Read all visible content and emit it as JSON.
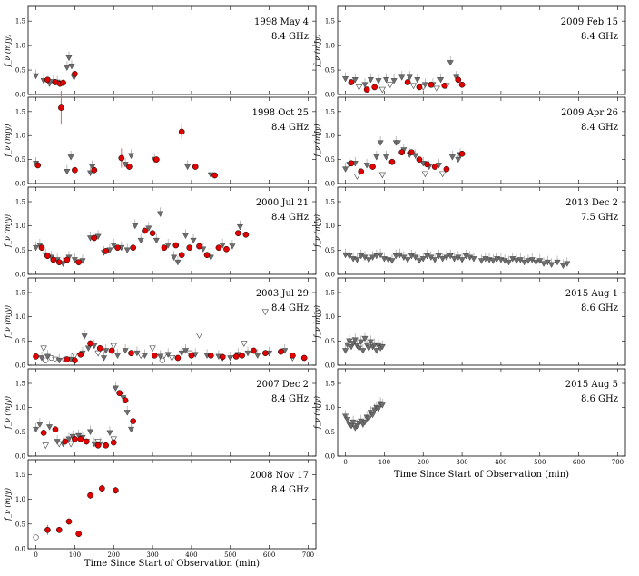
{
  "figure": {
    "xlabel": "Time Since Start of Observation (min)",
    "ylabel": "f_ν (mJy)",
    "yticks": [
      "0.0",
      "0.5",
      "1.0",
      "1.5"
    ],
    "xticks": [
      "0",
      "100",
      "200",
      "300",
      "400",
      "500",
      "600",
      "700"
    ]
  },
  "chart_data": [
    {
      "type": "scatter",
      "column": "left",
      "row": 0,
      "title": "1998 May 4",
      "freq": "8.4 GHz",
      "xlim": [
        -20,
        720
      ],
      "ylim": [
        0,
        1.8
      ],
      "series": [
        {
          "name": "detection-red",
          "x": [
            30,
            50,
            62,
            70,
            100
          ],
          "y": [
            0.3,
            0.25,
            0.22,
            0.24,
            0.42
          ]
        },
        {
          "name": "grey-filled-triangle",
          "x": [
            0,
            20,
            35,
            45,
            55,
            80,
            85,
            92,
            98
          ],
          "y": [
            0.38,
            0.28,
            0.22,
            0.26,
            0.25,
            0.55,
            0.75,
            0.58,
            0.35
          ]
        }
      ]
    },
    {
      "type": "scatter",
      "column": "left",
      "row": 1,
      "title": "1998 Oct 25",
      "freq": "8.4 GHz",
      "xlim": [
        -20,
        720
      ],
      "ylim": [
        0,
        1.8
      ],
      "series": [
        {
          "name": "detection-red",
          "x": [
            5,
            65,
            100,
            150,
            220,
            240,
            310,
            375,
            410,
            460
          ],
          "y": [
            0.38,
            1.58,
            0.28,
            0.28,
            0.53,
            0.35,
            0.5,
            1.08,
            0.35,
            0.17
          ],
          "err": [
            0.05,
            0.35,
            0.03,
            0.04,
            0.2,
            0.03,
            0.04,
            0.14,
            0.04,
            0.03
          ]
        },
        {
          "name": "grey-filled-triangle",
          "x": [
            0,
            80,
            90,
            140,
            145,
            230,
            245,
            305,
            390,
            450
          ],
          "y": [
            0.42,
            0.25,
            0.55,
            0.22,
            0.35,
            0.4,
            0.58,
            0.5,
            0.35,
            0.18
          ]
        }
      ]
    },
    {
      "type": "scatter",
      "column": "left",
      "row": 2,
      "title": "2000 Jul 21",
      "freq": "8.4 GHz",
      "xlim": [
        -20,
        720
      ],
      "ylim": [
        0,
        1.8
      ],
      "series": [
        {
          "name": "detection-red",
          "x": [
            15,
            30,
            45,
            60,
            80,
            110,
            150,
            180,
            210,
            250,
            280,
            300,
            330,
            360,
            375,
            395,
            420,
            440,
            470,
            490,
            520,
            540
          ],
          "y": [
            0.55,
            0.38,
            0.3,
            0.25,
            0.3,
            0.25,
            0.75,
            0.48,
            0.55,
            0.55,
            0.9,
            0.85,
            0.55,
            0.6,
            0.4,
            0.55,
            0.58,
            0.4,
            0.55,
            0.52,
            0.85,
            0.82
          ]
        },
        {
          "name": "grey-filled-triangle",
          "x": [
            0,
            10,
            25,
            40,
            55,
            70,
            85,
            100,
            120,
            140,
            160,
            175,
            190,
            200,
            220,
            235,
            255,
            270,
            290,
            310,
            320,
            340,
            355,
            365,
            385,
            405,
            430,
            450,
            480,
            505,
            525
          ],
          "y": [
            0.55,
            0.6,
            0.4,
            0.35,
            0.3,
            0.22,
            0.35,
            0.3,
            0.28,
            0.75,
            0.78,
            0.45,
            0.5,
            0.6,
            0.55,
            0.5,
            1.0,
            0.7,
            0.95,
            0.7,
            1.25,
            0.6,
            0.35,
            0.25,
            0.8,
            0.7,
            0.52,
            0.35,
            0.6,
            0.58,
            0.98
          ]
        }
      ]
    },
    {
      "type": "scatter",
      "column": "left",
      "row": 3,
      "title": "2003 Jul 29",
      "freq": "8.4 GHz",
      "xlim": [
        -20,
        720
      ],
      "ylim": [
        0,
        1.8
      ],
      "series": [
        {
          "name": "detection-red",
          "x": [
            0,
            80,
            100,
            115,
            140,
            165,
            195,
            245,
            305,
            365,
            400,
            450,
            480,
            515,
            530,
            560,
            590,
            630,
            660,
            690
          ],
          "y": [
            0.18,
            0.12,
            0.1,
            0.22,
            0.45,
            0.35,
            0.3,
            0.25,
            0.2,
            0.15,
            0.2,
            0.2,
            0.17,
            0.18,
            0.2,
            0.3,
            0.25,
            0.28,
            0.2,
            0.15
          ]
        },
        {
          "name": "grey-filled-triangle",
          "x": [
            15,
            30,
            60,
            90,
            120,
            125,
            135,
            150,
            175,
            180,
            210,
            230,
            260,
            280,
            320,
            340,
            375,
            385,
            410,
            440,
            470,
            500,
            520,
            545,
            570,
            600,
            640
          ],
          "y": [
            0.15,
            0.18,
            0.1,
            0.12,
            0.25,
            0.6,
            0.35,
            0.4,
            0.15,
            0.3,
            0.2,
            0.3,
            0.25,
            0.2,
            0.18,
            0.22,
            0.25,
            0.3,
            0.22,
            0.2,
            0.18,
            0.15,
            0.22,
            0.25,
            0.2,
            0.25,
            0.3
          ]
        },
        {
          "name": "open-triangle",
          "x": [
            20,
            50,
            100,
            160,
            200,
            270,
            300,
            330,
            350,
            395,
            420,
            480,
            535,
            590,
            660
          ],
          "y": [
            0.35,
            0.12,
            0.2,
            0.25,
            0.4,
            0.2,
            0.35,
            0.2,
            0.15,
            0.25,
            0.62,
            0.15,
            0.45,
            1.1,
            0.15
          ]
        },
        {
          "name": "open-circle",
          "x": [
            25,
            40,
            75,
            325
          ],
          "y": [
            0.1,
            0.15,
            0.12,
            0.1
          ]
        }
      ]
    },
    {
      "type": "scatter",
      "column": "left",
      "row": 4,
      "title": "2007 Dec 2",
      "freq": "8.4 GHz",
      "xlim": [
        -20,
        720
      ],
      "ylim": [
        0,
        1.8
      ],
      "series": [
        {
          "name": "detection-red",
          "x": [
            20,
            50,
            75,
            100,
            115,
            130,
            160,
            180,
            200,
            215,
            230,
            250
          ],
          "y": [
            0.48,
            0.55,
            0.3,
            0.35,
            0.35,
            0.3,
            0.22,
            0.22,
            0.28,
            1.3,
            1.15,
            0.72
          ]
        },
        {
          "name": "grey-filled-triangle",
          "x": [
            0,
            10,
            35,
            55,
            70,
            85,
            95,
            110,
            120,
            140,
            150,
            165,
            190,
            205,
            225,
            235,
            245
          ],
          "y": [
            0.55,
            0.65,
            0.6,
            0.3,
            0.25,
            0.35,
            0.4,
            0.42,
            0.38,
            0.5,
            0.25,
            0.25,
            0.48,
            1.4,
            1.2,
            0.9,
            0.55
          ]
        },
        {
          "name": "open-triangle",
          "x": [
            25,
            60,
            90,
            130,
            160,
            200
          ],
          "y": [
            0.22,
            0.25,
            0.25,
            0.3,
            0.3,
            0.35
          ]
        }
      ]
    },
    {
      "type": "scatter",
      "column": "left",
      "row": 5,
      "title": "2008 Nov 17",
      "freq": "8.4 GHz",
      "xlim": [
        -20,
        720
      ],
      "ylim": [
        0,
        1.8
      ],
      "series": [
        {
          "name": "detection-red",
          "x": [
            30,
            60,
            85,
            110,
            140,
            170,
            205
          ],
          "y": [
            0.38,
            0.38,
            0.55,
            0.3,
            1.08,
            1.22,
            1.18
          ],
          "err": [
            0.1,
            0.06,
            0.06,
            0.05,
            0.07,
            0.07,
            0.07
          ]
        },
        {
          "name": "open-circle",
          "x": [
            0
          ],
          "y": [
            0.23
          ]
        }
      ]
    },
    {
      "type": "scatter",
      "column": "right",
      "row": 0,
      "title": "2009 Feb 15",
      "freq": "8.4 GHz",
      "xlim": [
        -20,
        720
      ],
      "ylim": [
        0,
        1.8
      ],
      "series": [
        {
          "name": "detection-red",
          "x": [
            15,
            55,
            75,
            160,
            190,
            220,
            255,
            290,
            300
          ],
          "y": [
            0.25,
            0.1,
            0.15,
            0.25,
            0.15,
            0.2,
            0.18,
            0.3,
            0.2
          ]
        },
        {
          "name": "grey-filled-triangle",
          "x": [
            0,
            25,
            50,
            65,
            85,
            105,
            125,
            145,
            165,
            185,
            205,
            225,
            245,
            270,
            285
          ],
          "y": [
            0.32,
            0.3,
            0.2,
            0.3,
            0.28,
            0.3,
            0.28,
            0.35,
            0.35,
            0.3,
            0.2,
            0.2,
            0.3,
            0.65,
            0.35
          ]
        },
        {
          "name": "open-triangle",
          "x": [
            35,
            95,
            115,
            175,
            200,
            235,
            260
          ],
          "y": [
            0.15,
            0.1,
            0.2,
            0.18,
            0.15,
            0.12,
            0.18
          ]
        }
      ]
    },
    {
      "type": "scatter",
      "column": "right",
      "row": 1,
      "title": "2009 Apr 26",
      "freq": "8.4 GHz",
      "xlim": [
        -20,
        720
      ],
      "ylim": [
        0,
        1.8
      ],
      "series": [
        {
          "name": "detection-red",
          "x": [
            15,
            40,
            70,
            120,
            145,
            170,
            190,
            210,
            230,
            260,
            300
          ],
          "y": [
            0.42,
            0.25,
            0.35,
            0.45,
            0.65,
            0.65,
            0.5,
            0.4,
            0.35,
            0.3,
            0.62
          ]
        },
        {
          "name": "grey-filled-triangle",
          "x": [
            0,
            10,
            25,
            55,
            80,
            90,
            105,
            130,
            135,
            150,
            165,
            180,
            200,
            215,
            240,
            275,
            290,
            295
          ],
          "y": [
            0.3,
            0.4,
            0.42,
            0.38,
            0.55,
            0.85,
            0.55,
            0.85,
            0.85,
            0.7,
            0.6,
            0.58,
            0.42,
            0.35,
            0.38,
            0.55,
            0.5,
            0.6
          ]
        },
        {
          "name": "open-triangle",
          "x": [
            30,
            95,
            205,
            250
          ],
          "y": [
            0.15,
            0.18,
            0.2,
            0.2
          ]
        }
      ]
    },
    {
      "type": "scatter",
      "column": "right",
      "row": 2,
      "title": "2013 Dec 2",
      "freq": "7.5 GHz",
      "xlim": [
        -20,
        720
      ],
      "ylim": [
        0,
        1.8
      ],
      "series": [
        {
          "name": "grey-filled-triangle",
          "x": [
            0,
            10,
            20,
            30,
            40,
            50,
            60,
            70,
            80,
            90,
            100,
            110,
            120,
            130,
            140,
            150,
            160,
            170,
            180,
            190,
            200,
            210,
            220,
            230,
            240,
            250,
            260,
            270,
            280,
            290,
            300,
            310,
            320,
            330,
            350,
            360,
            370,
            380,
            390,
            400,
            410,
            420,
            430,
            440,
            450,
            460,
            470,
            480,
            490,
            500,
            510,
            520,
            530,
            545,
            560,
            570
          ],
          "y": [
            0.4,
            0.38,
            0.32,
            0.3,
            0.38,
            0.35,
            0.3,
            0.35,
            0.38,
            0.4,
            0.32,
            0.3,
            0.28,
            0.38,
            0.4,
            0.35,
            0.3,
            0.38,
            0.35,
            0.28,
            0.32,
            0.38,
            0.35,
            0.3,
            0.38,
            0.32,
            0.35,
            0.38,
            0.32,
            0.35,
            0.3,
            0.38,
            0.35,
            0.32,
            0.28,
            0.32,
            0.3,
            0.28,
            0.32,
            0.3,
            0.28,
            0.25,
            0.32,
            0.28,
            0.3,
            0.25,
            0.28,
            0.3,
            0.25,
            0.28,
            0.22,
            0.25,
            0.2,
            0.25,
            0.18,
            0.22
          ]
        }
      ]
    },
    {
      "type": "scatter",
      "column": "right",
      "row": 3,
      "title": "2015 Aug 1",
      "freq": "8.6 GHz",
      "xlim": [
        -20,
        720
      ],
      "ylim": [
        0,
        1.8
      ],
      "series": [
        {
          "name": "grey-filled-triangle",
          "x": [
            0,
            5,
            10,
            15,
            20,
            25,
            30,
            35,
            40,
            45,
            50,
            55,
            60,
            65,
            70,
            75,
            80,
            85,
            90,
            95
          ],
          "y": [
            0.3,
            0.42,
            0.5,
            0.38,
            0.45,
            0.52,
            0.4,
            0.35,
            0.48,
            0.3,
            0.55,
            0.42,
            0.35,
            0.48,
            0.38,
            0.42,
            0.3,
            0.4,
            0.35,
            0.38
          ]
        }
      ]
    },
    {
      "type": "scatter",
      "column": "right",
      "row": 4,
      "title": "2015 Aug 5",
      "freq": "8.6 GHz",
      "xlim": [
        -20,
        720
      ],
      "ylim": [
        0,
        1.8
      ],
      "series": [
        {
          "name": "grey-filled-triangle",
          "x": [
            0,
            5,
            10,
            15,
            20,
            25,
            30,
            35,
            40,
            45,
            50,
            55,
            60,
            65,
            70,
            75,
            80,
            85,
            90,
            95
          ],
          "y": [
            0.82,
            0.75,
            0.65,
            0.62,
            0.7,
            0.58,
            0.62,
            0.68,
            0.72,
            0.65,
            0.7,
            0.8,
            0.78,
            0.9,
            0.85,
            0.95,
            1.0,
            0.98,
            1.08,
            1.05
          ]
        }
      ]
    }
  ]
}
